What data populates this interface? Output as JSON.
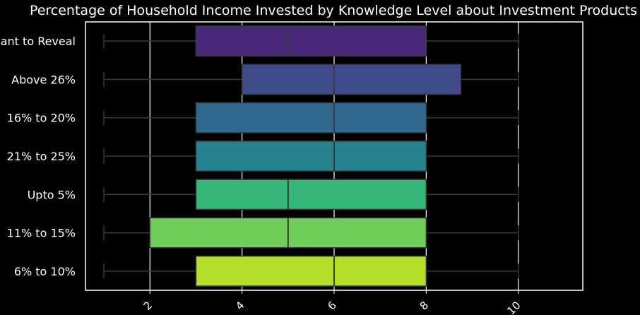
{
  "chart_data": {
    "type": "boxplot",
    "orientation": "horizontal",
    "title": "Percentage of Household Income Invested by Knowledge Level about Investment Products",
    "xlabel": "",
    "ylabel": "",
    "xlim": [
      0.6,
      11.4
    ],
    "xticks": [
      "2",
      "4",
      "6",
      "8",
      "10"
    ],
    "grid": true,
    "categories": [
      {
        "label": "ant to Reveal",
        "min": 1,
        "q1": 3,
        "median": 5,
        "q3": 8,
        "max": 10,
        "color": "#482878"
      },
      {
        "label": "Above 26%",
        "min": 1,
        "q1": 4,
        "median": 6,
        "q3": 8.75,
        "max": 10,
        "color": "#3e4a89"
      },
      {
        "label": "16% to 20%",
        "min": 1,
        "q1": 3,
        "median": 6,
        "q3": 8,
        "max": 10,
        "color": "#31688e"
      },
      {
        "label": "21% to 25%",
        "min": 1,
        "q1": 3,
        "median": 6,
        "q3": 8,
        "max": 10,
        "color": "#26828e"
      },
      {
        "label": "Upto 5%",
        "min": 1,
        "q1": 3,
        "median": 5,
        "q3": 8,
        "max": 10,
        "color": "#35b779"
      },
      {
        "label": "11% to 15%",
        "min": 1,
        "q1": 2,
        "median": 5,
        "q3": 8,
        "max": 10,
        "color": "#6ece58"
      },
      {
        "label": "6% to 10%",
        "min": 1,
        "q1": 3,
        "median": 6,
        "q3": 8,
        "max": 10,
        "color": "#b5de2b"
      }
    ]
  }
}
